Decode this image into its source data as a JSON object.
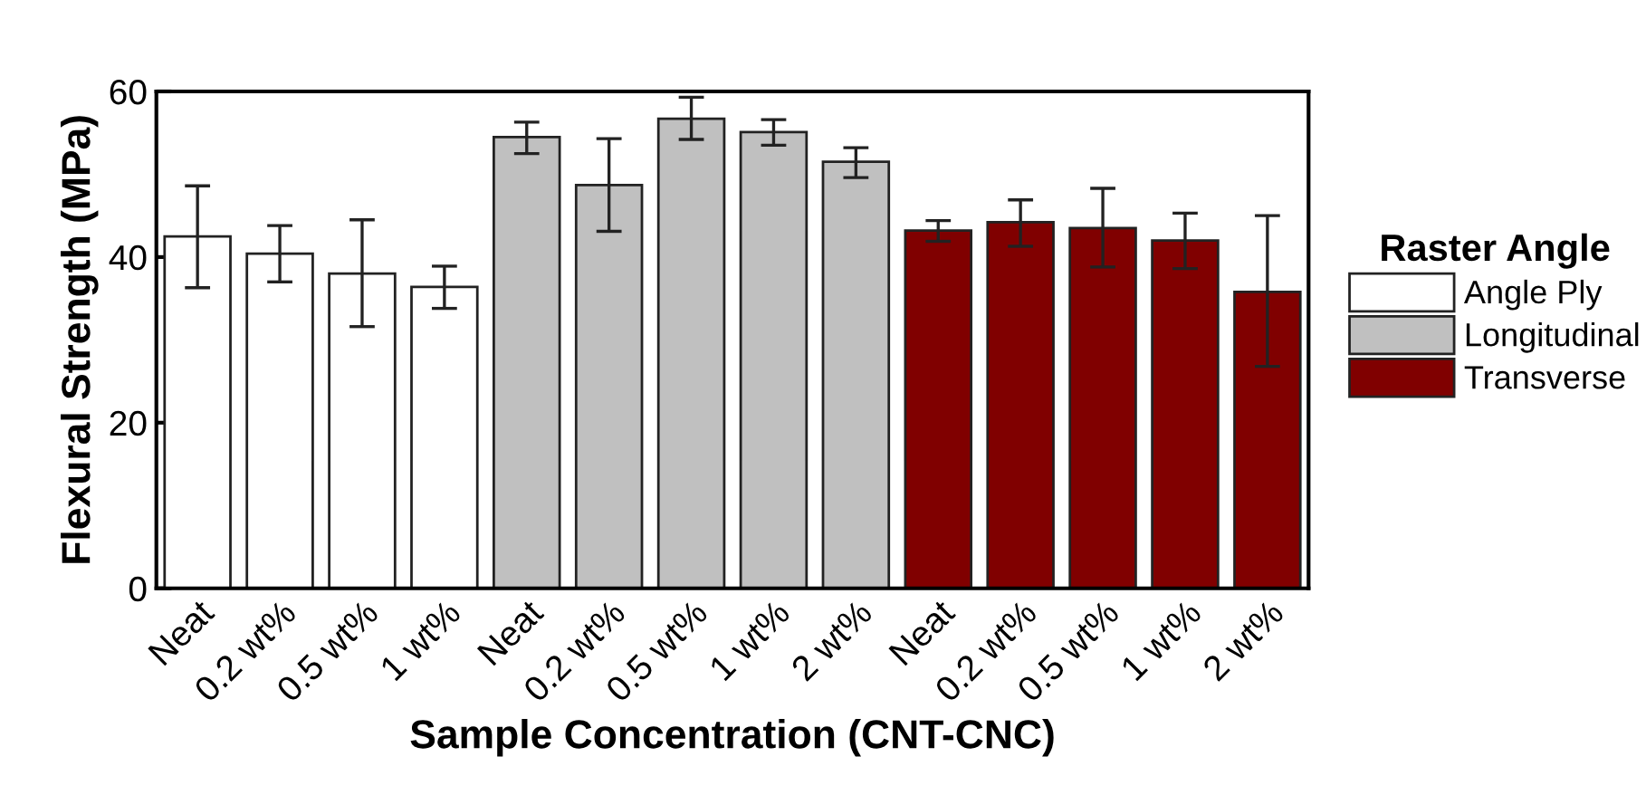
{
  "chart_data": {
    "type": "bar",
    "xlabel": "Sample Concentration (CNT-CNC)",
    "ylabel": "Flexural Strength (MPa)",
    "legend_title": "Raster Angle",
    "categories": [
      "Neat",
      "0.2 wt%",
      "0.5 wt%",
      "1 wt%",
      "Neat",
      "0.2 wt%",
      "0.5 wt%",
      "1 wt%",
      "2 wt%",
      "Neat",
      "0.2 wt%",
      "0.5 wt%",
      "1 wt%",
      "2 wt%"
    ],
    "series": [
      {
        "name": "Angle Ply",
        "color": "#ffffff",
        "values": [
          42.5,
          40.4,
          38.0,
          36.4,
          null,
          null,
          null,
          null,
          null,
          null,
          null,
          null,
          null,
          null
        ],
        "errors": [
          [
            36.3,
            48.6
          ],
          [
            37.0,
            43.8
          ],
          [
            31.6,
            44.5
          ],
          [
            33.8,
            38.9
          ],
          null,
          null,
          null,
          null,
          null,
          null,
          null,
          null,
          null,
          null
        ]
      },
      {
        "name": "Longitudinal",
        "color": "#c0c0c0",
        "values": [
          null,
          null,
          null,
          null,
          54.5,
          48.7,
          56.7,
          55.1,
          51.5,
          null,
          null,
          null,
          null,
          null
        ],
        "errors": [
          null,
          null,
          null,
          null,
          [
            52.5,
            56.3
          ],
          [
            43.1,
            54.3
          ],
          [
            54.2,
            59.3
          ],
          [
            53.5,
            56.6
          ],
          [
            49.6,
            53.2
          ],
          null,
          null,
          null,
          null,
          null
        ]
      },
      {
        "name": "Transverse",
        "color": "#800000",
        "values": [
          null,
          null,
          null,
          null,
          null,
          null,
          null,
          null,
          null,
          43.2,
          44.2,
          43.5,
          42.0,
          35.8
        ],
        "errors": [
          null,
          null,
          null,
          null,
          null,
          null,
          null,
          null,
          null,
          [
            41.9,
            44.4
          ],
          [
            41.3,
            46.9
          ],
          [
            38.8,
            48.3
          ],
          [
            38.6,
            45.3
          ],
          [
            26.8,
            45.0
          ]
        ]
      }
    ],
    "ylim": [
      0,
      60
    ],
    "yticks": [
      0,
      20,
      40,
      60
    ],
    "legend": "right",
    "grid": false
  }
}
